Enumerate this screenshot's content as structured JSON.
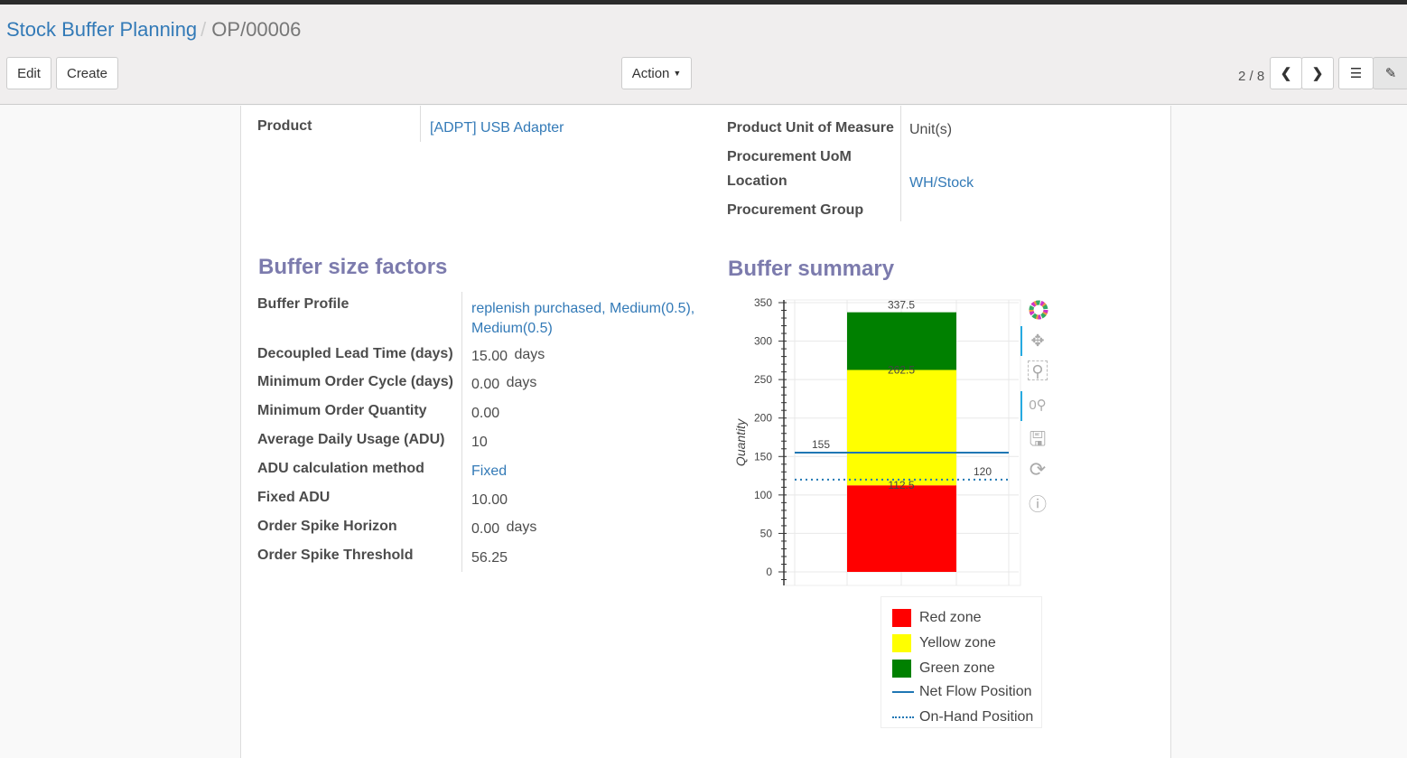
{
  "breadcrumb": {
    "parent": "Stock Buffer Planning",
    "current": "OP/00006"
  },
  "buttons": {
    "edit": "Edit",
    "create": "Create",
    "action": "Action"
  },
  "pager": {
    "value": "2 / 8"
  },
  "header_fields": {
    "product_label": "Product",
    "product_value": "[ADPT] USB Adapter",
    "uom_label": "Product Unit of Measure",
    "uom_value": "Unit(s)",
    "proc_uom_label": "Procurement UoM",
    "location_label": "Location",
    "location_value": "WH/Stock",
    "proc_group_label": "Procurement Group"
  },
  "factors": {
    "title": "Buffer size factors",
    "rows": [
      {
        "label": "Buffer Profile",
        "value": "replenish purchased, Medium(0.5),",
        "value2": "Medium(0.5)"
      },
      {
        "label": "Decoupled Lead Time (days)",
        "value": "15.00",
        "unit": "days"
      },
      {
        "label": "Minimum Order Cycle (days)",
        "value": "0.00",
        "unit": "days"
      },
      {
        "label": "Minimum Order Quantity",
        "value": "0.00"
      },
      {
        "label": "Average Daily Usage (ADU)",
        "value": "10"
      },
      {
        "label": "ADU calculation method",
        "value": "Fixed"
      },
      {
        "label": "Fixed ADU",
        "value": "10.00"
      },
      {
        "label": "Order Spike Horizon",
        "value": "0.00",
        "unit": "days"
      },
      {
        "label": "Order Spike Threshold",
        "value": "56.25"
      }
    ]
  },
  "summary": {
    "title": "Buffer summary"
  },
  "chart_data": {
    "type": "bar",
    "stacked": true,
    "ylabel": "Quantity",
    "ylim": [
      0,
      350
    ],
    "yticks": [
      0,
      50,
      100,
      150,
      200,
      250,
      300,
      350
    ],
    "grid": true,
    "series": [
      {
        "name": "Red zone",
        "from": 0,
        "to": 112.5,
        "color": "#ff0000",
        "label": "112.5"
      },
      {
        "name": "Yellow zone",
        "from": 112.5,
        "to": 262.5,
        "color": "#ffff00",
        "label": "262.5"
      },
      {
        "name": "Green zone",
        "from": 262.5,
        "to": 337.5,
        "color": "#008000",
        "label": "337.5"
      }
    ],
    "lines": [
      {
        "name": "Net Flow Position",
        "value": 155,
        "label": "155",
        "style": "solid",
        "color": "#1f77b4"
      },
      {
        "name": "On-Hand Position",
        "value": 120,
        "label": "120",
        "style": "dotted",
        "color": "#1f77b4"
      }
    ],
    "legend": "bottom-right"
  },
  "toolbar_icons": [
    "bokeh-logo-icon",
    "pan-icon",
    "box-zoom-icon",
    "wheel-zoom-icon",
    "save-icon",
    "reset-icon",
    "help-icon"
  ]
}
